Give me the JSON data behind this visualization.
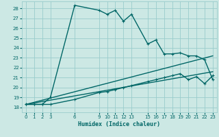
{
  "xlabel": "Humidex (Indice chaleur)",
  "xlim": [
    -0.5,
    23.5
  ],
  "ylim": [
    17.5,
    28.7
  ],
  "yticks": [
    18,
    19,
    20,
    21,
    22,
    23,
    24,
    25,
    26,
    27,
    28
  ],
  "xticks": [
    0,
    1,
    2,
    3,
    6,
    9,
    10,
    11,
    12,
    13,
    15,
    16,
    17,
    18,
    19,
    20,
    21,
    22,
    23
  ],
  "bg_color": "#cce8e4",
  "grid_color": "#99cccc",
  "line_color": "#006666",
  "line1_x": [
    0,
    1,
    2,
    3,
    6,
    9,
    10,
    11,
    12,
    13,
    15,
    16,
    17,
    18,
    19,
    20,
    21,
    22,
    23
  ],
  "line1_y": [
    18.3,
    18.3,
    18.3,
    19.0,
    28.3,
    27.8,
    27.4,
    27.8,
    26.7,
    27.4,
    24.4,
    24.8,
    23.4,
    23.4,
    23.5,
    23.2,
    23.2,
    22.8,
    20.8
  ],
  "line2_x": [
    0,
    1,
    2,
    3,
    6,
    9,
    10,
    11,
    12,
    13,
    15,
    16,
    17,
    18,
    19,
    20,
    21,
    22,
    23
  ],
  "line2_y": [
    18.3,
    18.3,
    18.3,
    18.3,
    18.8,
    19.5,
    19.6,
    19.8,
    20.0,
    20.2,
    20.6,
    20.8,
    21.0,
    21.2,
    21.4,
    20.8,
    21.1,
    20.4,
    21.2
  ],
  "line3_x": [
    0,
    23
  ],
  "line3_y": [
    18.3,
    23.2
  ],
  "line4_x": [
    0,
    23
  ],
  "line4_y": [
    18.3,
    21.6
  ]
}
